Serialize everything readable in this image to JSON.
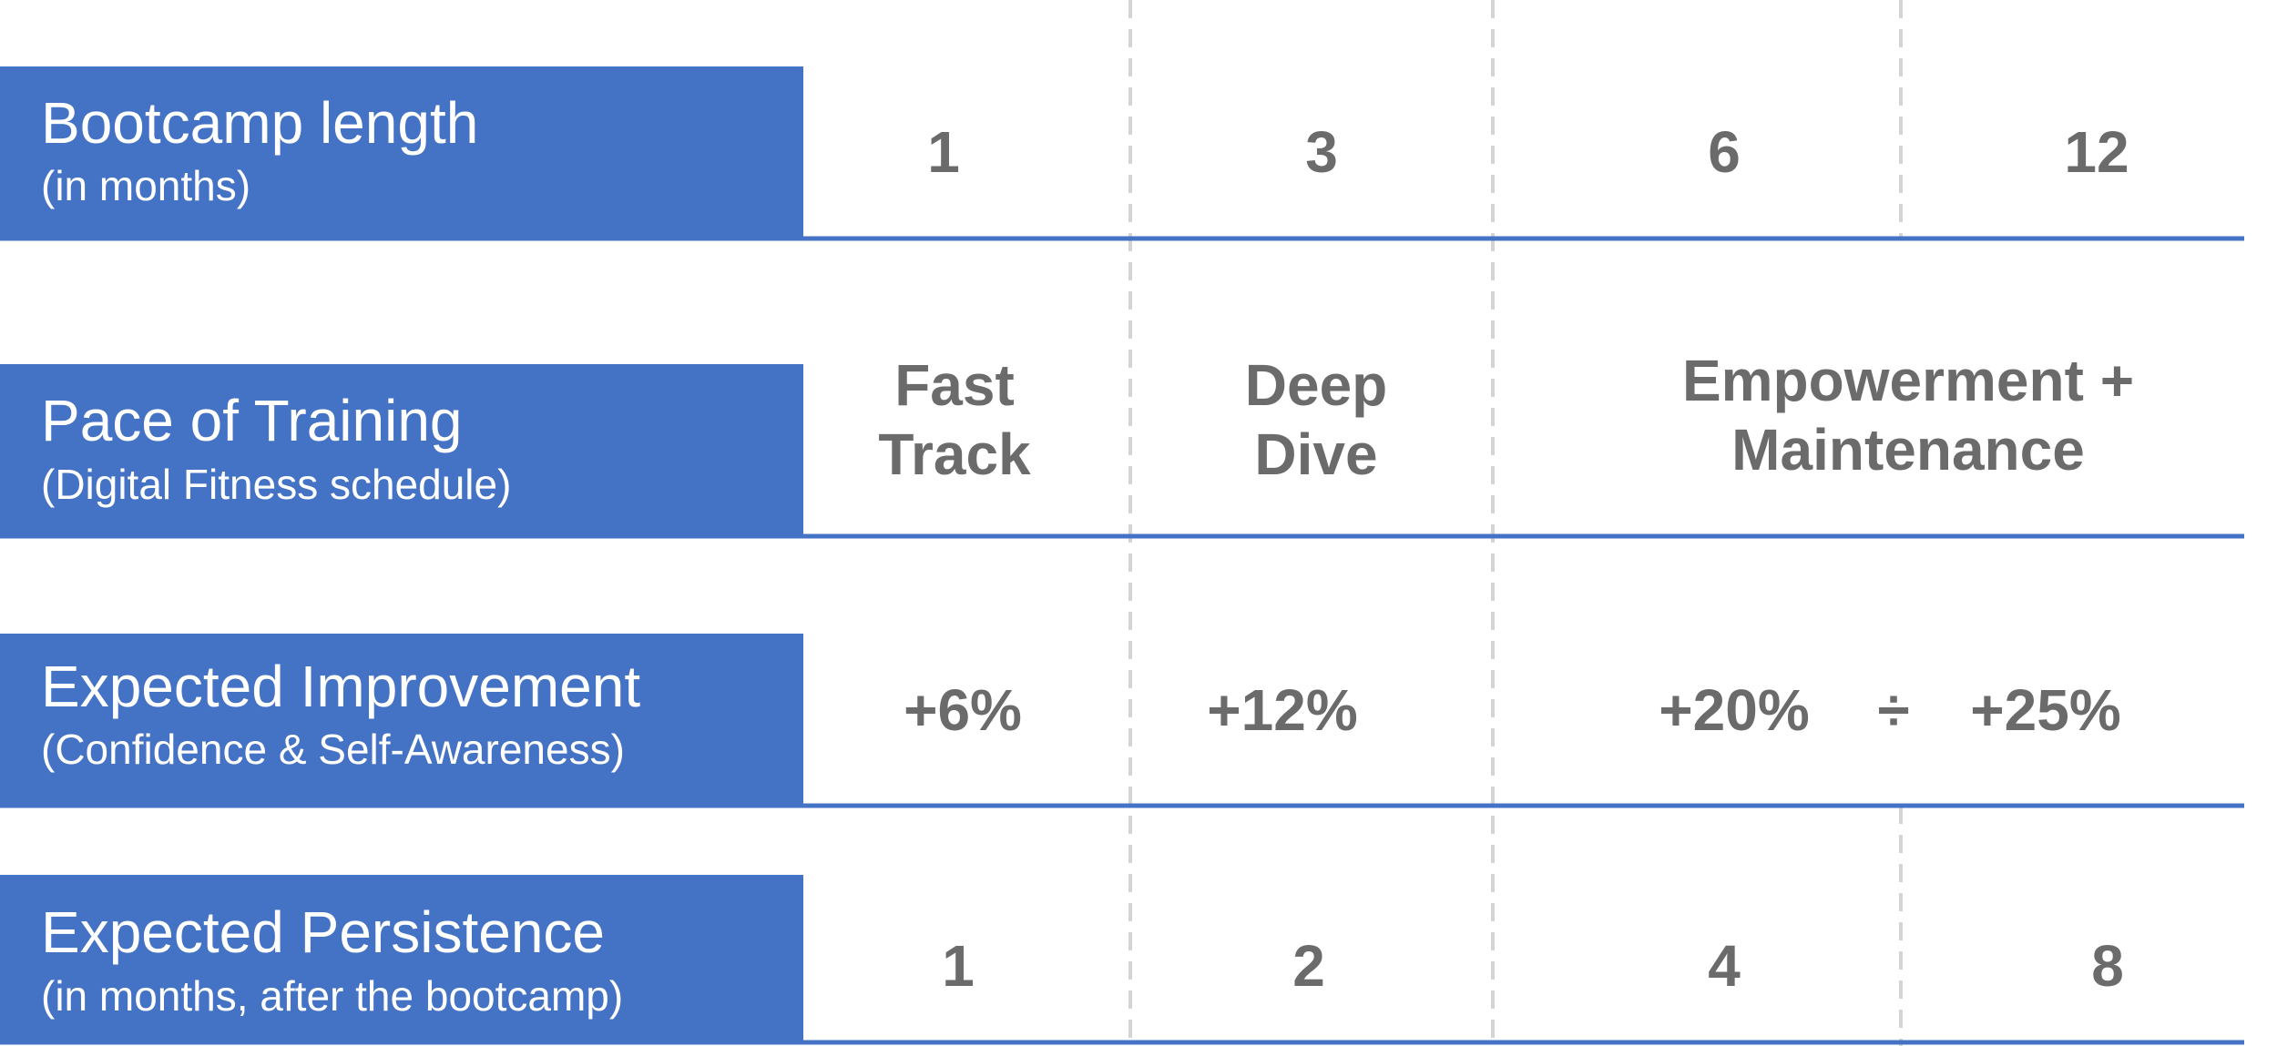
{
  "rows": [
    {
      "label": "Bootcamp length",
      "sublabel": "(in months)",
      "cells": [
        "1",
        "3",
        "6",
        "12"
      ]
    },
    {
      "label": "Pace of Training",
      "sublabel": "(Digital Fitness schedule)",
      "cells": [
        [
          "Fast",
          "Track"
        ],
        [
          "Deep",
          "Dive"
        ],
        [
          "Empowerment +",
          "Maintenance"
        ]
      ]
    },
    {
      "label": "Expected Improvement",
      "sublabel": "(Confidence & Self-Awareness)",
      "cells": [
        "+6%",
        "+12%",
        "+20%",
        "÷",
        "+25%"
      ]
    },
    {
      "label": "Expected Persistence",
      "sublabel": "(in months, after the bootcamp)",
      "cells": [
        "1",
        "2",
        "4",
        "8"
      ]
    }
  ]
}
